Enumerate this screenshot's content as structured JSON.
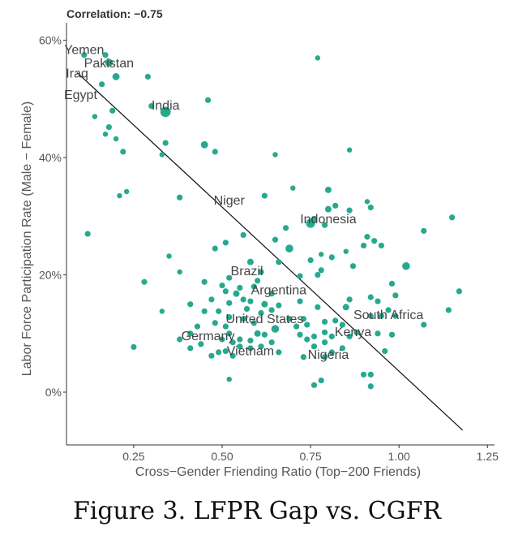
{
  "corr_label": "Correlation: −0.75",
  "caption": "Figure 3. LFPR Gap vs. CGFR",
  "colors": {
    "point": "#26a98f",
    "line": "#111111",
    "axis": "#333333",
    "text": "#555555"
  },
  "chart_data": {
    "type": "scatter",
    "xlabel": "Cross−Gender Friending Ratio (Top−200 Friends)",
    "ylabel": "Labor Force Participation Rate (Male − Female)",
    "xlim": [
      0.06,
      1.27
    ],
    "ylim": [
      -0.09,
      0.63
    ],
    "xticks": [
      0.25,
      0.5,
      0.75,
      1.0,
      1.25
    ],
    "xtick_labels": [
      "0.25",
      "0.50",
      "0.75",
      "1.00",
      "1.25"
    ],
    "yticks": [
      0,
      0.2,
      0.4,
      0.6
    ],
    "ytick_labels": [
      "0%",
      "20%",
      "40%",
      "60%"
    ],
    "grid": false,
    "trend_line": {
      "x": [
        0.09,
        1.18
      ],
      "y": [
        0.545,
        -0.065
      ]
    },
    "points": [
      {
        "x": 0.11,
        "y": 0.575,
        "s": 4.5
      },
      {
        "x": 0.17,
        "y": 0.575,
        "s": 4.5
      },
      {
        "x": 0.18,
        "y": 0.562,
        "s": 6
      },
      {
        "x": 0.29,
        "y": 0.538,
        "s": 4.5
      },
      {
        "x": 0.16,
        "y": 0.525,
        "s": 4.5
      },
      {
        "x": 0.2,
        "y": 0.538,
        "s": 5.5
      },
      {
        "x": 0.3,
        "y": 0.488,
        "s": 4.5
      },
      {
        "x": 0.34,
        "y": 0.478,
        "s": 8
      },
      {
        "x": 0.46,
        "y": 0.498,
        "s": 4.5
      },
      {
        "x": 0.77,
        "y": 0.57,
        "s": 4
      },
      {
        "x": 0.19,
        "y": 0.48,
        "s": 4.5
      },
      {
        "x": 0.14,
        "y": 0.47,
        "s": 4
      },
      {
        "x": 0.18,
        "y": 0.452,
        "s": 4.5
      },
      {
        "x": 0.17,
        "y": 0.44,
        "s": 4
      },
      {
        "x": 0.2,
        "y": 0.432,
        "s": 4
      },
      {
        "x": 0.34,
        "y": 0.425,
        "s": 4.5
      },
      {
        "x": 0.45,
        "y": 0.422,
        "s": 5.5
      },
      {
        "x": 0.48,
        "y": 0.41,
        "s": 4.5
      },
      {
        "x": 0.22,
        "y": 0.41,
        "s": 4.5
      },
      {
        "x": 0.33,
        "y": 0.405,
        "s": 4
      },
      {
        "x": 0.65,
        "y": 0.405,
        "s": 4
      },
      {
        "x": 0.86,
        "y": 0.413,
        "s": 4
      },
      {
        "x": 0.7,
        "y": 0.348,
        "s": 4
      },
      {
        "x": 0.8,
        "y": 0.345,
        "s": 5
      },
      {
        "x": 0.23,
        "y": 0.342,
        "s": 4
      },
      {
        "x": 0.21,
        "y": 0.335,
        "s": 4
      },
      {
        "x": 0.38,
        "y": 0.332,
        "s": 4.5
      },
      {
        "x": 0.62,
        "y": 0.335,
        "s": 4.5
      },
      {
        "x": 0.91,
        "y": 0.325,
        "s": 4
      },
      {
        "x": 0.82,
        "y": 0.318,
        "s": 4.5
      },
      {
        "x": 0.8,
        "y": 0.312,
        "s": 5
      },
      {
        "x": 0.86,
        "y": 0.31,
        "s": 4.5
      },
      {
        "x": 0.92,
        "y": 0.315,
        "s": 4.5
      },
      {
        "x": 0.76,
        "y": 0.295,
        "s": 5
      },
      {
        "x": 0.75,
        "y": 0.288,
        "s": 7
      },
      {
        "x": 0.79,
        "y": 0.285,
        "s": 4.5
      },
      {
        "x": 0.68,
        "y": 0.28,
        "s": 4.5
      },
      {
        "x": 0.12,
        "y": 0.27,
        "s": 4.5
      },
      {
        "x": 0.56,
        "y": 0.268,
        "s": 4.5
      },
      {
        "x": 0.91,
        "y": 0.265,
        "s": 4.5
      },
      {
        "x": 0.9,
        "y": 0.25,
        "s": 4.5
      },
      {
        "x": 0.95,
        "y": 0.25,
        "s": 4.5
      },
      {
        "x": 0.93,
        "y": 0.258,
        "s": 4.5
      },
      {
        "x": 1.07,
        "y": 0.275,
        "s": 4.5
      },
      {
        "x": 1.15,
        "y": 0.298,
        "s": 4.5
      },
      {
        "x": 0.51,
        "y": 0.255,
        "s": 4.5
      },
      {
        "x": 0.65,
        "y": 0.26,
        "s": 4.5
      },
      {
        "x": 0.48,
        "y": 0.245,
        "s": 4.5
      },
      {
        "x": 0.69,
        "y": 0.245,
        "s": 6
      },
      {
        "x": 0.85,
        "y": 0.24,
        "s": 4
      },
      {
        "x": 0.78,
        "y": 0.235,
        "s": 4
      },
      {
        "x": 0.81,
        "y": 0.23,
        "s": 4.5
      },
      {
        "x": 0.35,
        "y": 0.232,
        "s": 4
      },
      {
        "x": 0.66,
        "y": 0.222,
        "s": 4.5
      },
      {
        "x": 0.75,
        "y": 0.225,
        "s": 4.5
      },
      {
        "x": 0.87,
        "y": 0.215,
        "s": 4.5
      },
      {
        "x": 1.02,
        "y": 0.215,
        "s": 6
      },
      {
        "x": 0.58,
        "y": 0.222,
        "s": 5
      },
      {
        "x": 0.61,
        "y": 0.205,
        "s": 4.5
      },
      {
        "x": 0.38,
        "y": 0.205,
        "s": 4
      },
      {
        "x": 0.78,
        "y": 0.208,
        "s": 4.5
      },
      {
        "x": 0.77,
        "y": 0.2,
        "s": 4.5
      },
      {
        "x": 0.72,
        "y": 0.198,
        "s": 4.5
      },
      {
        "x": 0.6,
        "y": 0.19,
        "s": 4.5
      },
      {
        "x": 0.52,
        "y": 0.195,
        "s": 4.5
      },
      {
        "x": 0.28,
        "y": 0.188,
        "s": 4.5
      },
      {
        "x": 0.45,
        "y": 0.188,
        "s": 4.5
      },
      {
        "x": 0.5,
        "y": 0.182,
        "s": 4.5
      },
      {
        "x": 0.55,
        "y": 0.178,
        "s": 4.5
      },
      {
        "x": 0.59,
        "y": 0.18,
        "s": 4.5
      },
      {
        "x": 0.51,
        "y": 0.172,
        "s": 4.5
      },
      {
        "x": 0.54,
        "y": 0.168,
        "s": 5
      },
      {
        "x": 0.64,
        "y": 0.168,
        "s": 4.5
      },
      {
        "x": 0.98,
        "y": 0.185,
        "s": 4.5
      },
      {
        "x": 1.17,
        "y": 0.172,
        "s": 4.5
      },
      {
        "x": 0.92,
        "y": 0.162,
        "s": 4.5
      },
      {
        "x": 0.99,
        "y": 0.165,
        "s": 4.5
      },
      {
        "x": 0.47,
        "y": 0.158,
        "s": 4.5
      },
      {
        "x": 0.56,
        "y": 0.158,
        "s": 4.5
      },
      {
        "x": 0.86,
        "y": 0.158,
        "s": 4.5
      },
      {
        "x": 0.41,
        "y": 0.15,
        "s": 4.5
      },
      {
        "x": 0.52,
        "y": 0.152,
        "s": 4.5
      },
      {
        "x": 0.58,
        "y": 0.155,
        "s": 4.5
      },
      {
        "x": 0.62,
        "y": 0.15,
        "s": 5
      },
      {
        "x": 0.72,
        "y": 0.155,
        "s": 4.5
      },
      {
        "x": 0.66,
        "y": 0.148,
        "s": 4.5
      },
      {
        "x": 0.94,
        "y": 0.155,
        "s": 4.5
      },
      {
        "x": 0.77,
        "y": 0.145,
        "s": 4.5
      },
      {
        "x": 0.85,
        "y": 0.145,
        "s": 5
      },
      {
        "x": 0.45,
        "y": 0.138,
        "s": 4.5
      },
      {
        "x": 0.49,
        "y": 0.138,
        "s": 4.5
      },
      {
        "x": 0.57,
        "y": 0.142,
        "s": 4.5
      },
      {
        "x": 0.61,
        "y": 0.135,
        "s": 4.5
      },
      {
        "x": 0.64,
        "y": 0.14,
        "s": 4.5
      },
      {
        "x": 0.33,
        "y": 0.138,
        "s": 4
      },
      {
        "x": 0.97,
        "y": 0.14,
        "s": 4.5
      },
      {
        "x": 1.14,
        "y": 0.14,
        "s": 4.5
      },
      {
        "x": 0.92,
        "y": 0.13,
        "s": 4.5
      },
      {
        "x": 0.95,
        "y": 0.13,
        "s": 4.5
      },
      {
        "x": 0.99,
        "y": 0.13,
        "s": 4.5
      },
      {
        "x": 0.52,
        "y": 0.128,
        "s": 4.5
      },
      {
        "x": 0.56,
        "y": 0.125,
        "s": 4.5
      },
      {
        "x": 0.69,
        "y": 0.125,
        "s": 4.5
      },
      {
        "x": 0.73,
        "y": 0.125,
        "s": 4.5
      },
      {
        "x": 0.82,
        "y": 0.122,
        "s": 4.5
      },
      {
        "x": 0.79,
        "y": 0.12,
        "s": 4.5
      },
      {
        "x": 0.48,
        "y": 0.118,
        "s": 4.5
      },
      {
        "x": 0.59,
        "y": 0.118,
        "s": 4.5
      },
      {
        "x": 0.74,
        "y": 0.115,
        "s": 4.5
      },
      {
        "x": 0.84,
        "y": 0.115,
        "s": 4.5
      },
      {
        "x": 0.43,
        "y": 0.112,
        "s": 4.5
      },
      {
        "x": 0.51,
        "y": 0.112,
        "s": 4.5
      },
      {
        "x": 0.71,
        "y": 0.112,
        "s": 4.5
      },
      {
        "x": 1.07,
        "y": 0.115,
        "s": 4.5
      },
      {
        "x": 0.65,
        "y": 0.108,
        "s": 6
      },
      {
        "x": 0.79,
        "y": 0.102,
        "s": 4.5
      },
      {
        "x": 0.88,
        "y": 0.102,
        "s": 4.5
      },
      {
        "x": 0.94,
        "y": 0.1,
        "s": 4.5
      },
      {
        "x": 0.98,
        "y": 0.098,
        "s": 4.5
      },
      {
        "x": 0.6,
        "y": 0.1,
        "s": 5
      },
      {
        "x": 0.62,
        "y": 0.098,
        "s": 4.5
      },
      {
        "x": 0.52,
        "y": 0.1,
        "s": 4.5
      },
      {
        "x": 0.41,
        "y": 0.1,
        "s": 4.5
      },
      {
        "x": 0.72,
        "y": 0.098,
        "s": 4.5
      },
      {
        "x": 0.76,
        "y": 0.095,
        "s": 4.5
      },
      {
        "x": 0.81,
        "y": 0.095,
        "s": 4.5
      },
      {
        "x": 0.86,
        "y": 0.095,
        "s": 4.5
      },
      {
        "x": 0.38,
        "y": 0.09,
        "s": 4.5
      },
      {
        "x": 0.5,
        "y": 0.09,
        "s": 4.5
      },
      {
        "x": 0.55,
        "y": 0.09,
        "s": 4.5
      },
      {
        "x": 0.58,
        "y": 0.088,
        "s": 4.5
      },
      {
        "x": 0.74,
        "y": 0.09,
        "s": 4.5
      },
      {
        "x": 0.53,
        "y": 0.085,
        "s": 4.5
      },
      {
        "x": 0.64,
        "y": 0.085,
        "s": 4.5
      },
      {
        "x": 0.79,
        "y": 0.085,
        "s": 4.5
      },
      {
        "x": 0.44,
        "y": 0.082,
        "s": 4.5
      },
      {
        "x": 0.55,
        "y": 0.078,
        "s": 4.5
      },
      {
        "x": 0.25,
        "y": 0.077,
        "s": 4.5
      },
      {
        "x": 0.61,
        "y": 0.078,
        "s": 4.5
      },
      {
        "x": 0.76,
        "y": 0.078,
        "s": 4.5
      },
      {
        "x": 0.41,
        "y": 0.075,
        "s": 4.5
      },
      {
        "x": 0.58,
        "y": 0.075,
        "s": 4.5
      },
      {
        "x": 0.84,
        "y": 0.075,
        "s": 4.5
      },
      {
        "x": 0.51,
        "y": 0.07,
        "s": 4.5
      },
      {
        "x": 0.66,
        "y": 0.068,
        "s": 4.5
      },
      {
        "x": 0.81,
        "y": 0.068,
        "s": 4.5
      },
      {
        "x": 0.96,
        "y": 0.07,
        "s": 4.5
      },
      {
        "x": 0.47,
        "y": 0.062,
        "s": 4.5
      },
      {
        "x": 0.49,
        "y": 0.068,
        "s": 4.5
      },
      {
        "x": 0.79,
        "y": 0.06,
        "s": 4.5
      },
      {
        "x": 0.73,
        "y": 0.06,
        "s": 4.5
      },
      {
        "x": 0.53,
        "y": 0.062,
        "s": 4.5
      },
      {
        "x": 0.52,
        "y": 0.022,
        "s": 4
      },
      {
        "x": 0.78,
        "y": 0.02,
        "s": 4.5
      },
      {
        "x": 0.9,
        "y": 0.03,
        "s": 4.5
      },
      {
        "x": 0.92,
        "y": 0.03,
        "s": 4.5
      },
      {
        "x": 0.76,
        "y": 0.012,
        "s": 4.5
      },
      {
        "x": 0.92,
        "y": 0.01,
        "s": 4.5
      }
    ],
    "labels": [
      {
        "text": "Yemen",
        "x": 0.11,
        "y": 0.585
      },
      {
        "text": "Pakistan",
        "x": 0.18,
        "y": 0.562
      },
      {
        "text": "Iraq",
        "x": 0.09,
        "y": 0.545
      },
      {
        "text": "Egypt",
        "x": 0.1,
        "y": 0.508
      },
      {
        "text": "India",
        "x": 0.34,
        "y": 0.49
      },
      {
        "text": "Niger",
        "x": 0.52,
        "y": 0.328
      },
      {
        "text": "Indonesia",
        "x": 0.8,
        "y": 0.296
      },
      {
        "text": "Brazil",
        "x": 0.57,
        "y": 0.208
      },
      {
        "text": "Argentina",
        "x": 0.66,
        "y": 0.175
      },
      {
        "text": "South Africa",
        "x": 0.97,
        "y": 0.133
      },
      {
        "text": "United States",
        "x": 0.62,
        "y": 0.126
      },
      {
        "text": "Kenya",
        "x": 0.87,
        "y": 0.104
      },
      {
        "text": "Germany",
        "x": 0.46,
        "y": 0.097
      },
      {
        "text": "Vietnam",
        "x": 0.58,
        "y": 0.071
      },
      {
        "text": "Nigeria",
        "x": 0.8,
        "y": 0.065
      }
    ]
  }
}
